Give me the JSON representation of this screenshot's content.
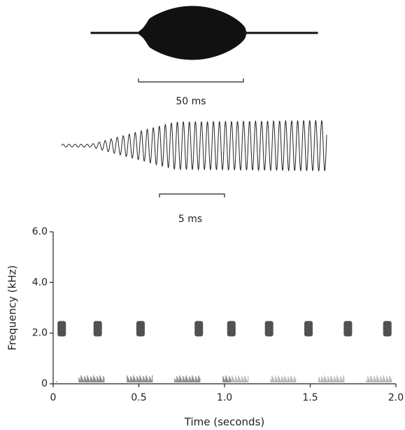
{
  "waveform": {
    "scale_label": "50 ms"
  },
  "detail": {
    "scale_label": "5 ms"
  },
  "chart_data": {
    "type": "scatter",
    "x": [
      0.05,
      0.26,
      0.51,
      0.85,
      1.04,
      1.26,
      1.49,
      1.72,
      1.95
    ],
    "values": [
      2.2,
      2.2,
      2.2,
      2.2,
      2.2,
      2.2,
      2.2,
      2.2,
      2.2
    ],
    "color": "#333333",
    "xlabel": "Time (seconds)",
    "ylabel": "Frequency (kHz)",
    "xlim": [
      0,
      2.0
    ],
    "ylim": [
      0,
      6.0
    ],
    "xticks": [
      0,
      0.5,
      {
        "value": 1,
        "label": "1.0"
      },
      1.5,
      {
        "value": 2,
        "label": "2.0"
      }
    ],
    "yticks": [
      0,
      {
        "value": 2,
        "label": "2.0"
      },
      {
        "value": 4,
        "label": "4.0"
      },
      {
        "value": 6,
        "label": "6.0"
      }
    ]
  }
}
